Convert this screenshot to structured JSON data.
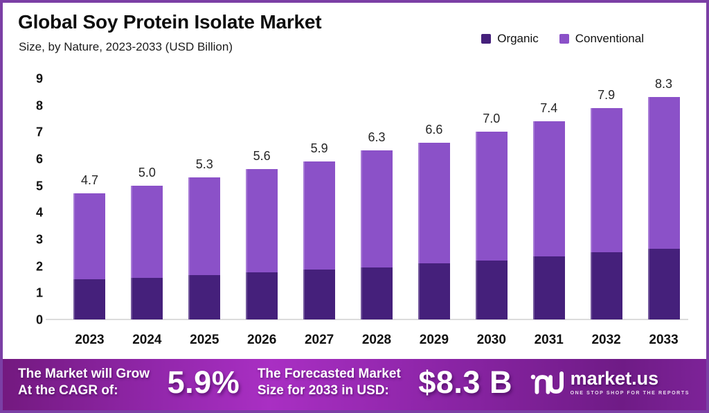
{
  "frame": {
    "border_color": "#7b3fa5",
    "background": "#ffffff"
  },
  "header": {
    "title": "Global Soy Protein Isolate Market",
    "subtitle": "Size, by Nature, 2023-2033 (USD Billion)"
  },
  "legend": {
    "items": [
      {
        "label": "Organic",
        "color": "#45207b"
      },
      {
        "label": "Conventional",
        "color": "#8b51c8"
      }
    ]
  },
  "chart_data": {
    "type": "bar",
    "stacked": true,
    "title": "Global Soy Protein Isolate Market",
    "subtitle": "Size, by Nature, 2023-2033 (USD Billion)",
    "unit": "USD Billion",
    "categories": [
      "2023",
      "2024",
      "2025",
      "2026",
      "2027",
      "2028",
      "2029",
      "2030",
      "2031",
      "2032",
      "2033"
    ],
    "series": [
      {
        "name": "Organic",
        "color": "#45207b",
        "values": [
          1.5,
          1.55,
          1.65,
          1.75,
          1.85,
          1.95,
          2.1,
          2.2,
          2.35,
          2.5,
          2.65
        ]
      },
      {
        "name": "Conventional",
        "color": "#8b51c8",
        "values": [
          3.2,
          3.45,
          3.65,
          3.85,
          4.05,
          4.35,
          4.5,
          4.8,
          5.05,
          5.4,
          5.65
        ]
      }
    ],
    "totals": [
      4.7,
      5.0,
      5.3,
      5.6,
      5.9,
      6.3,
      6.6,
      7.0,
      7.4,
      7.9,
      8.3
    ],
    "total_labels": [
      "4.7",
      "5.0",
      "5.3",
      "5.6",
      "5.9",
      "6.3",
      "6.6",
      "7.0",
      "7.4",
      "7.9",
      "8.3"
    ],
    "ylim": [
      0,
      9
    ],
    "yticks": [
      0,
      1,
      2,
      3,
      4,
      5,
      6,
      7,
      8,
      9
    ],
    "grid": false,
    "legend_position": "top-right",
    "value_labels": "totals-above-bars"
  },
  "footer": {
    "cagr_label_line1": "The Market will Grow",
    "cagr_label_line2": "At the CAGR of:",
    "cagr_value": "5.9%",
    "forecast_label_line1": "The Forecasted Market",
    "forecast_label_line2": "Size for 2033 in USD:",
    "forecast_value": "$8.3 B",
    "brand_name": "market.us",
    "brand_tagline": "ONE STOP SHOP FOR THE REPORTS"
  }
}
